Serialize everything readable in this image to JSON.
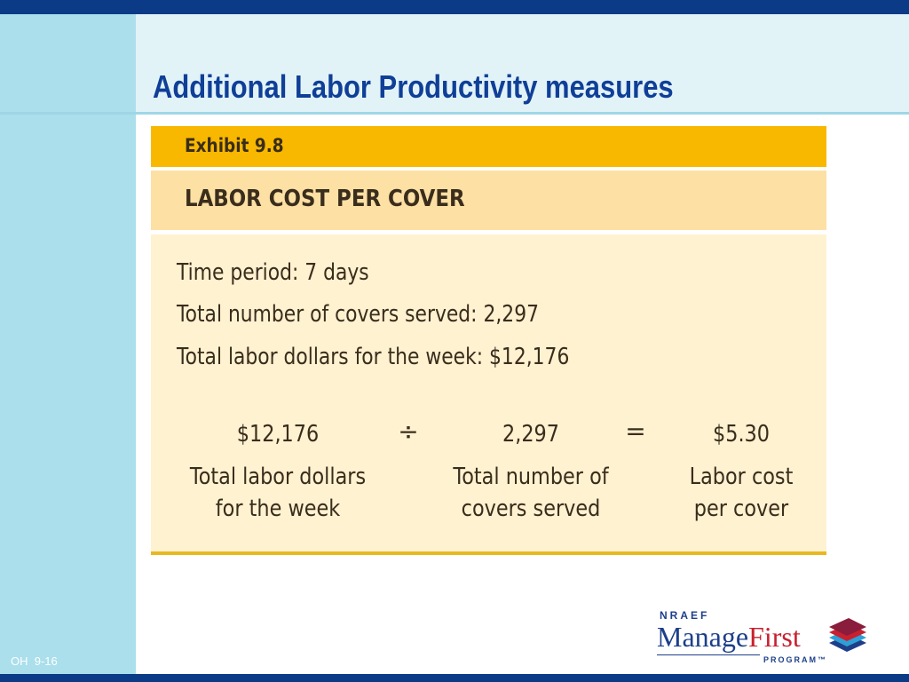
{
  "slide": {
    "title": "Additional Labor Productivity measures",
    "slide_number": "OH  9-16"
  },
  "exhibit": {
    "label": "Exhibit 9.8",
    "subtitle": "LABOR COST PER COVER",
    "facts": [
      "Time period: 7 days",
      "Total number of covers served: 2,297",
      "Total labor dollars for the week: $12,176"
    ],
    "calculation": {
      "term1": {
        "value": "$12,176",
        "caption_line1": "Total labor dollars",
        "caption_line2": "for the week"
      },
      "operator1": "÷",
      "term2": {
        "value": "2,297",
        "caption_line1": "Total number of",
        "caption_line2": "covers served"
      },
      "operator2": "=",
      "result": {
        "value": "$5.30",
        "caption_line1": "Labor cost",
        "caption_line2": "per cover"
      }
    }
  },
  "logo": {
    "top_text": "NRAEF",
    "manage_text": "Manage",
    "first_text": "First",
    "program_text": "PROGRAM™"
  },
  "colors": {
    "navy": "#0b3a87",
    "title_blue": "#0f3f97",
    "exhibit_gold": "#f8b800",
    "exhibit_light": "#fde0a4",
    "exhibit_body": "#fff2d1",
    "sidebar_blue": "#aadfeb"
  }
}
